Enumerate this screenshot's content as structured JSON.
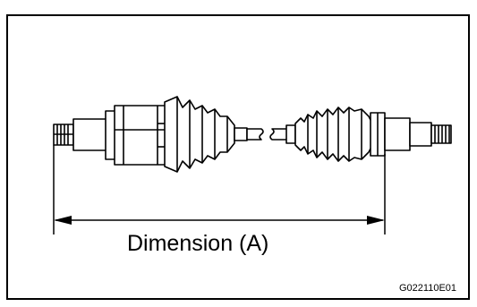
{
  "figure": {
    "dimension_label": "Dimension (A)",
    "figure_id": "G022110E01"
  }
}
